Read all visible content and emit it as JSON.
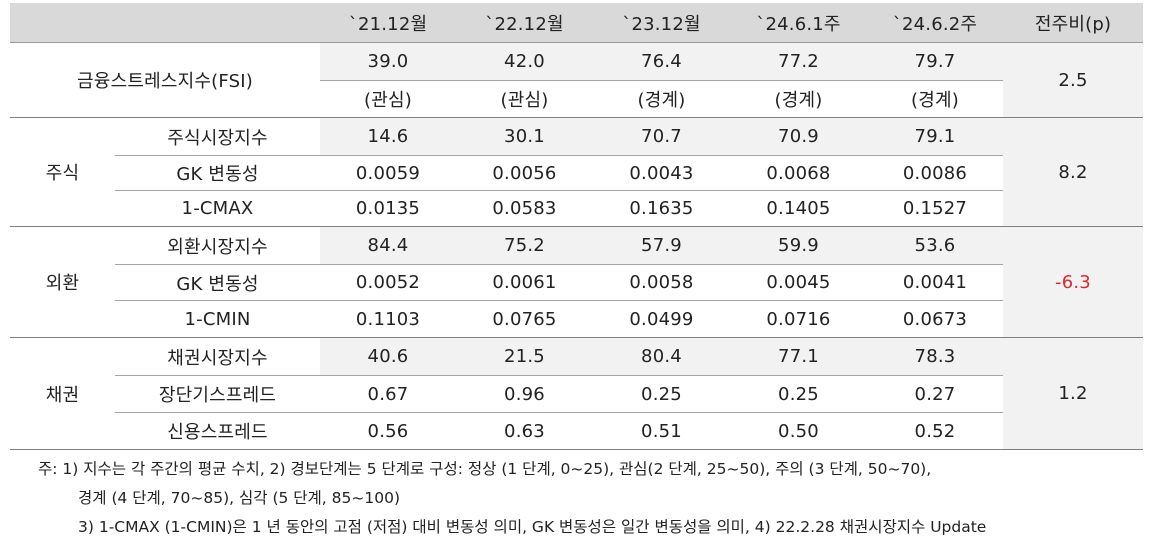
{
  "columns": [
    "`21.12월",
    "`22.12월",
    "`23.12월",
    "`24.6.1주",
    "`24.6.2주",
    "전주비(p)"
  ],
  "fsi": {
    "label": "금융스트레스지수(FSI)",
    "values": [
      "39.0",
      "42.0",
      "76.4",
      "77.2",
      "79.7"
    ],
    "levels": [
      "(관심)",
      "(관심)",
      "(경계)",
      "(경계)",
      "(경계)"
    ],
    "change": "2.5"
  },
  "groups": [
    {
      "label": "주식",
      "change": "8.2",
      "rows": [
        {
          "label": "주식시장지수",
          "values": [
            "14.6",
            "30.1",
            "70.7",
            "70.9",
            "79.1"
          ]
        },
        {
          "label": "GK 변동성",
          "values": [
            "0.0059",
            "0.0056",
            "0.0043",
            "0.0068",
            "0.0086"
          ]
        },
        {
          "label": "1-CMAX",
          "values": [
            "0.0135",
            "0.0583",
            "0.1635",
            "0.1405",
            "0.1527"
          ]
        }
      ]
    },
    {
      "label": "외환",
      "change": "-6.3",
      "rows": [
        {
          "label": "외환시장지수",
          "values": [
            "84.4",
            "75.2",
            "57.9",
            "59.9",
            "53.6"
          ]
        },
        {
          "label": "GK 변동성",
          "values": [
            "0.0052",
            "0.0061",
            "0.0058",
            "0.0045",
            "0.0041"
          ]
        },
        {
          "label": "1-CMIN",
          "values": [
            "0.1103",
            "0.0765",
            "0.0499",
            "0.0716",
            "0.0673"
          ]
        }
      ]
    },
    {
      "label": "채권",
      "change": "1.2",
      "rows": [
        {
          "label": "채권시장지수",
          "values": [
            "40.6",
            "21.5",
            "80.4",
            "77.1",
            "78.3"
          ]
        },
        {
          "label": "장단기스프레드",
          "values": [
            "0.67",
            "0.96",
            "0.25",
            "0.25",
            "0.27"
          ]
        },
        {
          "label": "신용스프레드",
          "values": [
            "0.56",
            "0.63",
            "0.51",
            "0.50",
            "0.52"
          ]
        }
      ]
    }
  ],
  "notes": [
    "주: 1) 지수는 각 주간의 평균 수치, 2) 경보단계는 5 단계로 구성: 정상 (1 단계, 0~25), 관심(2 단계, 25~50), 주의 (3 단계, 50~70),",
    "경계 (4 단계, 70~85), 심각 (5 단계, 85~100)",
    "3) 1-CMAX (1-CMIN)은 1 년 동안의 고점 (저점) 대비 변동성 의미, GK 변동성은 일간 변동성을 의미, 4) 22.2.28 채권시장지수 Update"
  ],
  "colors": {
    "header_bg": "#d9d9d9",
    "shade_bg": "#f2f2f2",
    "negative": "#e0282a"
  }
}
